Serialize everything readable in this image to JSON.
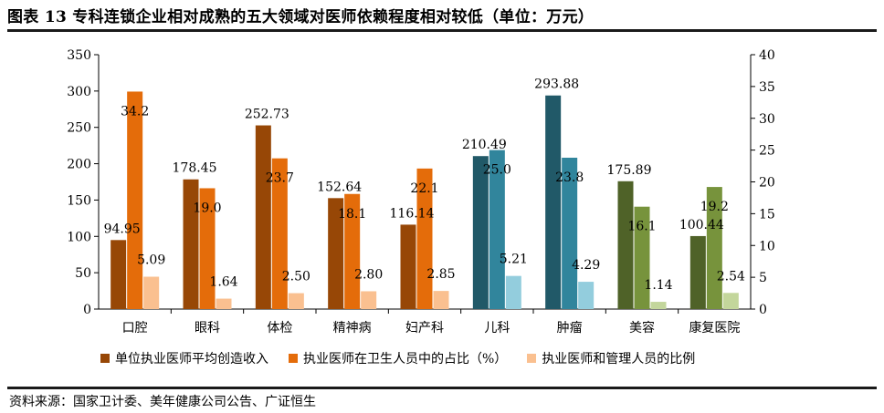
{
  "title": "图表 13 专科连锁企业相对成熟的五大领域对医师依赖程度相对较低（单位：万元）",
  "source": "资料来源：国家卫计委、美年健康公司公告、广证恒生",
  "colors": {
    "s1": [
      "#974706",
      "#974706",
      "#974706",
      "#974706",
      "#974706",
      "#215968",
      "#215968",
      "#4f6228",
      "#4f6228"
    ],
    "s2": [
      "#e46c0a",
      "#e46c0a",
      "#e46c0a",
      "#e46c0a",
      "#e46c0a",
      "#31859c",
      "#31859c",
      "#77933c",
      "#77933c"
    ],
    "s3": [
      "#fac090",
      "#fac090",
      "#fac090",
      "#fac090",
      "#fac090",
      "#93cddd",
      "#93cddd",
      "#c3d69b",
      "#c3d69b"
    ],
    "legend": [
      "#974706",
      "#e46c0a",
      "#fac090"
    ]
  },
  "chart_data": {
    "type": "bar",
    "categories": [
      "口腔",
      "眼科",
      "体检",
      "精神病",
      "妇产科",
      "儿科",
      "肿瘤",
      "美容",
      "康复医院"
    ],
    "series": [
      {
        "name": "单位执业医师平均创造收入",
        "axis": "left",
        "values": [
          94.95,
          178.45,
          252.73,
          152.64,
          116.14,
          210.49,
          293.88,
          175.89,
          100.44
        ],
        "labels": [
          "94.95",
          "178.45",
          "252.73",
          "152.64",
          "116.14",
          "210.49",
          "293.88",
          "175.89",
          "100.44"
        ]
      },
      {
        "name": "执业医师在卫生人员中的占比（%）",
        "axis": "right",
        "values": [
          34.2,
          19.0,
          23.7,
          18.1,
          22.1,
          25.0,
          23.8,
          16.1,
          19.2
        ],
        "labels": [
          "34.2",
          "19.0",
          "23.7",
          "18.1",
          "22.1",
          "25.0",
          "23.8",
          "16.1",
          "19.2"
        ]
      },
      {
        "name": "执业医师和管理人员的比例",
        "axis": "right",
        "values": [
          5.09,
          1.64,
          2.5,
          2.8,
          2.85,
          5.21,
          4.29,
          1.14,
          2.54
        ],
        "labels": [
          "5.09",
          "1.64",
          "2.50",
          "2.80",
          "2.85",
          "5.21",
          "4.29",
          "1.14",
          "2.54"
        ]
      }
    ],
    "y_left": {
      "min": 0,
      "max": 350,
      "ticks": [
        "0",
        "50",
        "100",
        "150",
        "200",
        "250",
        "300",
        "350"
      ]
    },
    "y_right": {
      "min": 0,
      "max": 40,
      "ticks": [
        "0",
        "5",
        "10",
        "15",
        "20",
        "25",
        "30",
        "35",
        "40"
      ]
    },
    "grid": false,
    "legend_position": "bottom"
  }
}
